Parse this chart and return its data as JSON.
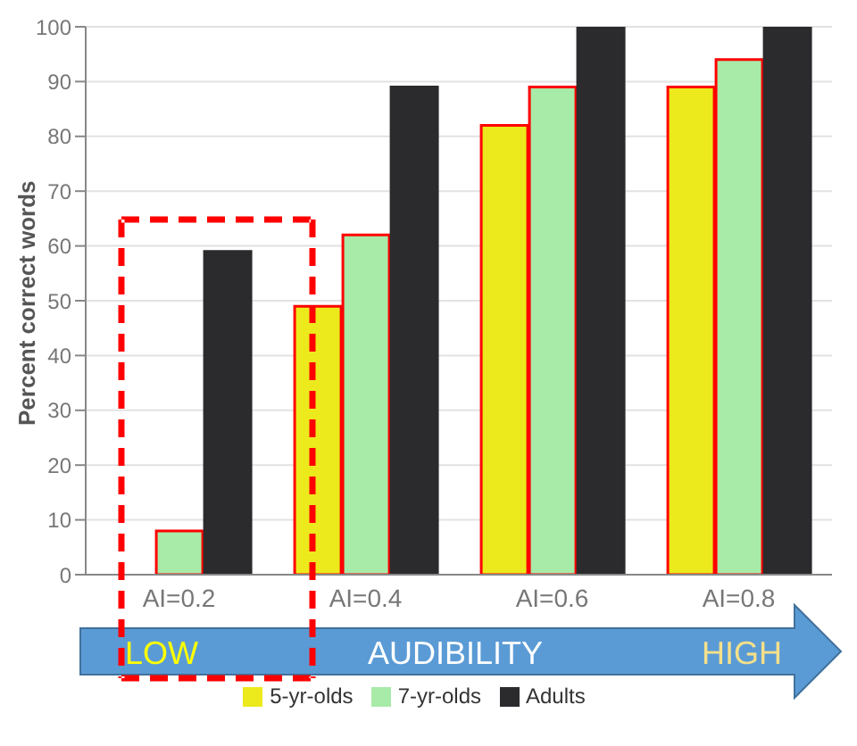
{
  "chart_data": {
    "type": "bar",
    "ylabel": "Percent correct words",
    "categories": [
      "AI=0.2",
      "AI=0.4",
      "AI=0.6",
      "AI=0.8"
    ],
    "series": [
      {
        "name": "5-yr-olds",
        "color": "#ecea1c",
        "values": [
          0,
          49,
          82,
          89
        ]
      },
      {
        "name": "7-yr-olds",
        "color": "#a8eaa8",
        "values": [
          8,
          62,
          89,
          94
        ]
      },
      {
        "name": "Adults",
        "color": "#2b2b2e",
        "values": [
          59,
          89,
          100,
          100
        ]
      }
    ],
    "ylim": [
      0,
      100
    ],
    "yticks": [
      0,
      10,
      20,
      30,
      40,
      50,
      60,
      70,
      80,
      90,
      100
    ],
    "grid": "y",
    "legend": "bottom",
    "annotations": [
      "LOW",
      "AUDIBILITY",
      "HIGH"
    ]
  }
}
